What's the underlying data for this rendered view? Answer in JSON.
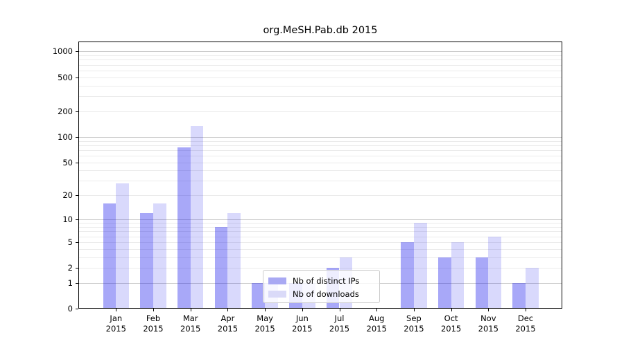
{
  "title": "org.MeSH.Pab.db 2015",
  "legend": {
    "items": [
      {
        "label": "Nb of distinct IPs",
        "color": "#a9a9f3"
      },
      {
        "label": "Nb of downloads",
        "color": "#dadaf8"
      }
    ]
  },
  "colors": {
    "bar_distinct_ips": "rgba(20,20,235,0.37)",
    "bar_downloads": "rgba(20,20,235,0.16)",
    "gridline_minor": "#ebebeb",
    "gridline_major": "#c9c9c9",
    "axis_frame": "#000000",
    "text": "#000000"
  },
  "chart_data": {
    "type": "bar",
    "title": "org.MeSH.Pab.db 2015",
    "categories": [
      "Jan 2015",
      "Feb 2015",
      "Mar 2015",
      "Apr 2015",
      "May 2015",
      "Jun 2015",
      "Jul 2015",
      "Aug 2015",
      "Sep 2015",
      "Oct 2015",
      "Nov 2015",
      "Dec 2015"
    ],
    "series": [
      {
        "name": "Nb of distinct IPs",
        "values": [
          16,
          12,
          75,
          8,
          1,
          1,
          2,
          0,
          5,
          3,
          3,
          1
        ]
      },
      {
        "name": "Nb of downloads",
        "values": [
          28,
          16,
          135,
          12,
          1,
          1,
          3,
          0,
          9,
          5,
          6,
          2
        ]
      }
    ],
    "xlabel": "",
    "ylabel": "",
    "yscale": "log1p",
    "ylim": [
      0,
      1300
    ],
    "yticks": [
      0,
      1,
      2,
      5,
      10,
      20,
      50,
      100,
      200,
      500,
      1000
    ],
    "major_gridlines": [
      1,
      10,
      100,
      1000
    ],
    "minor_gridlines": [
      2,
      3,
      4,
      5,
      6,
      7,
      8,
      9,
      20,
      30,
      40,
      50,
      60,
      70,
      80,
      90,
      200,
      300,
      400,
      500,
      600,
      700,
      800,
      900
    ],
    "grid": true,
    "legend_position": "lower center (inside plot, over May-Jul bars)"
  }
}
